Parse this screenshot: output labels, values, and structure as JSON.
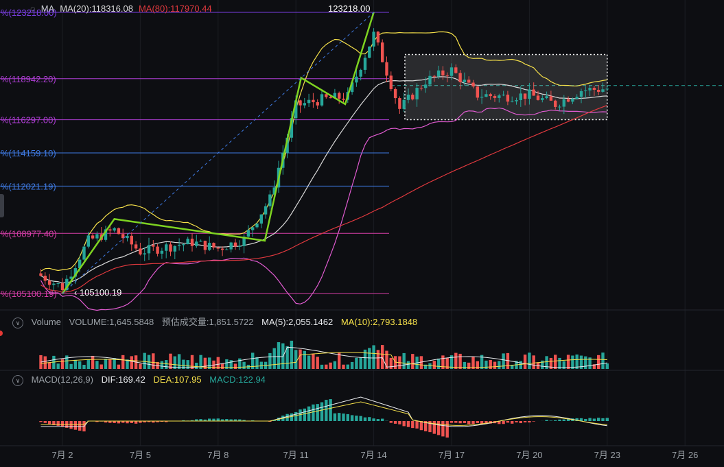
{
  "price_panel": {
    "indicator_name": "MA",
    "ma20": {
      "label": "MA(20):118316.08",
      "color": "#d9d9d9"
    },
    "ma80": {
      "label": "MA(80):117970.44",
      "color": "#e0393e"
    },
    "peak_label": "123218.00",
    "low_label": "105100.19",
    "fib_levels": [
      {
        "label": "%(123218.00)",
        "price": 123218.0,
        "color": "#7b3fe4"
      },
      {
        "label": "%(118942.20)",
        "price": 118942.2,
        "color": "#b03ed6"
      },
      {
        "label": "%(116297.00)",
        "price": 116297.0,
        "color": "#b03ed6"
      },
      {
        "label": "%(114159.10)",
        "price": 114159.1,
        "color": "#3f7be4"
      },
      {
        "label": "%(112021.19)",
        "price": 112021.19,
        "color": "#3f7be4"
      },
      {
        "label": "%(108977.40)",
        "price": 108977.4,
        "color": "#d63ea8"
      },
      {
        "label": "%(105100.19)",
        "price": 105100.19,
        "color": "#d63ea8"
      }
    ],
    "range_box": {
      "x_start": 15.2,
      "x_end": 23.0,
      "price_high": 120500,
      "price_low": 116300
    },
    "dashed_level": 118500
  },
  "volume_panel": {
    "title": "Volume",
    "volume_label": "VOLUME:1,645.5848",
    "est_label": "预估成交量:1,851.5722",
    "ma5_label": "MA(5):2,055.1462",
    "ma10_label": "MA(10):2,793.1848",
    "ma10_color": "#f5e04a"
  },
  "macd_panel": {
    "title": "MACD(12,26,9)",
    "dif_label": "DIF:169.42",
    "dea_label": "DEA:107.95",
    "macd_label": "MACD:122.94",
    "dea_color": "#f5e04a",
    "macd_color": "#26a69a"
  },
  "x_axis": {
    "ticks": [
      {
        "label": "7月 2",
        "day": 2
      },
      {
        "label": "7月 5",
        "day": 5
      },
      {
        "label": "7月 8",
        "day": 8
      },
      {
        "label": "7月 11",
        "day": 11
      },
      {
        "label": "7月 14",
        "day": 14
      },
      {
        "label": "7月 17",
        "day": 17
      },
      {
        "label": "7月 20",
        "day": 20
      },
      {
        "label": "7月 23",
        "day": 23
      },
      {
        "label": "7月 26",
        "day": 26
      }
    ]
  },
  "colors": {
    "up": "#26a69a",
    "down": "#ef5350",
    "zigzag": "#7ed321",
    "boll_upper": "#f5e04a",
    "boll_lower": "#e05bd0"
  },
  "chart_data": {
    "type": "candlestick",
    "x": [
      "Jul 1",
      "Jul 2",
      "Jul 3",
      "Jul 4",
      "Jul 5",
      "Jul 6",
      "Jul 7",
      "Jul 8",
      "Jul 9",
      "Jul 10",
      "Jul 11",
      "Jul 12",
      "Jul 13",
      "Jul 14",
      "Jul 15",
      "Jul 16",
      "Jul 17",
      "Jul 18",
      "Jul 19",
      "Jul 20",
      "Jul 21",
      "Jul 22",
      "Jul 23"
    ],
    "close": [
      106400,
      105500,
      108500,
      109200,
      107800,
      108100,
      108400,
      108000,
      108600,
      111200,
      117200,
      117600,
      117800,
      121800,
      117000,
      118800,
      119500,
      117900,
      117800,
      117900,
      117300,
      118200,
      118300
    ],
    "ylim": [
      104300,
      124000
    ],
    "zigzag": [
      {
        "day": 2.0,
        "price": 105100.19
      },
      {
        "day": 4.0,
        "price": 109900
      },
      {
        "day": 9.8,
        "price": 108500
      },
      {
        "day": 11.2,
        "price": 119000
      },
      {
        "day": 12.9,
        "price": 117300
      },
      {
        "day": 14.0,
        "price": 123218
      }
    ]
  }
}
